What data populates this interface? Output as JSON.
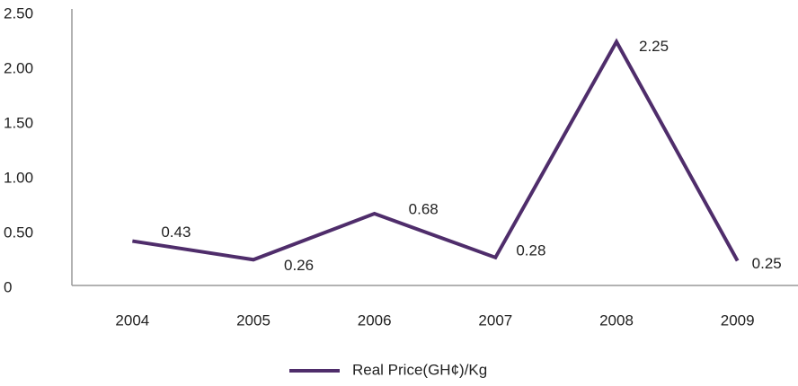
{
  "chart_data": {
    "type": "line",
    "categories": [
      "2004",
      "2005",
      "2006",
      "2007",
      "2008",
      "2009"
    ],
    "series": [
      {
        "name": "Real Price(GH¢)/Kg",
        "color": "#4f2d6b",
        "values": [
          0.43,
          0.26,
          0.68,
          0.28,
          2.25,
          0.25
        ]
      }
    ],
    "ylim": [
      0,
      2.5
    ],
    "yticks": [
      0,
      {
        "value": 0.5,
        "label": "0.50"
      },
      {
        "value": 1,
        "label": "1.00"
      },
      {
        "value": 1.5,
        "label": "1.50"
      },
      {
        "value": 2,
        "label": "2.00"
      },
      {
        "value": 2.5,
        "label": "2.50"
      }
    ],
    "grid": false,
    "legend": "bottom"
  }
}
